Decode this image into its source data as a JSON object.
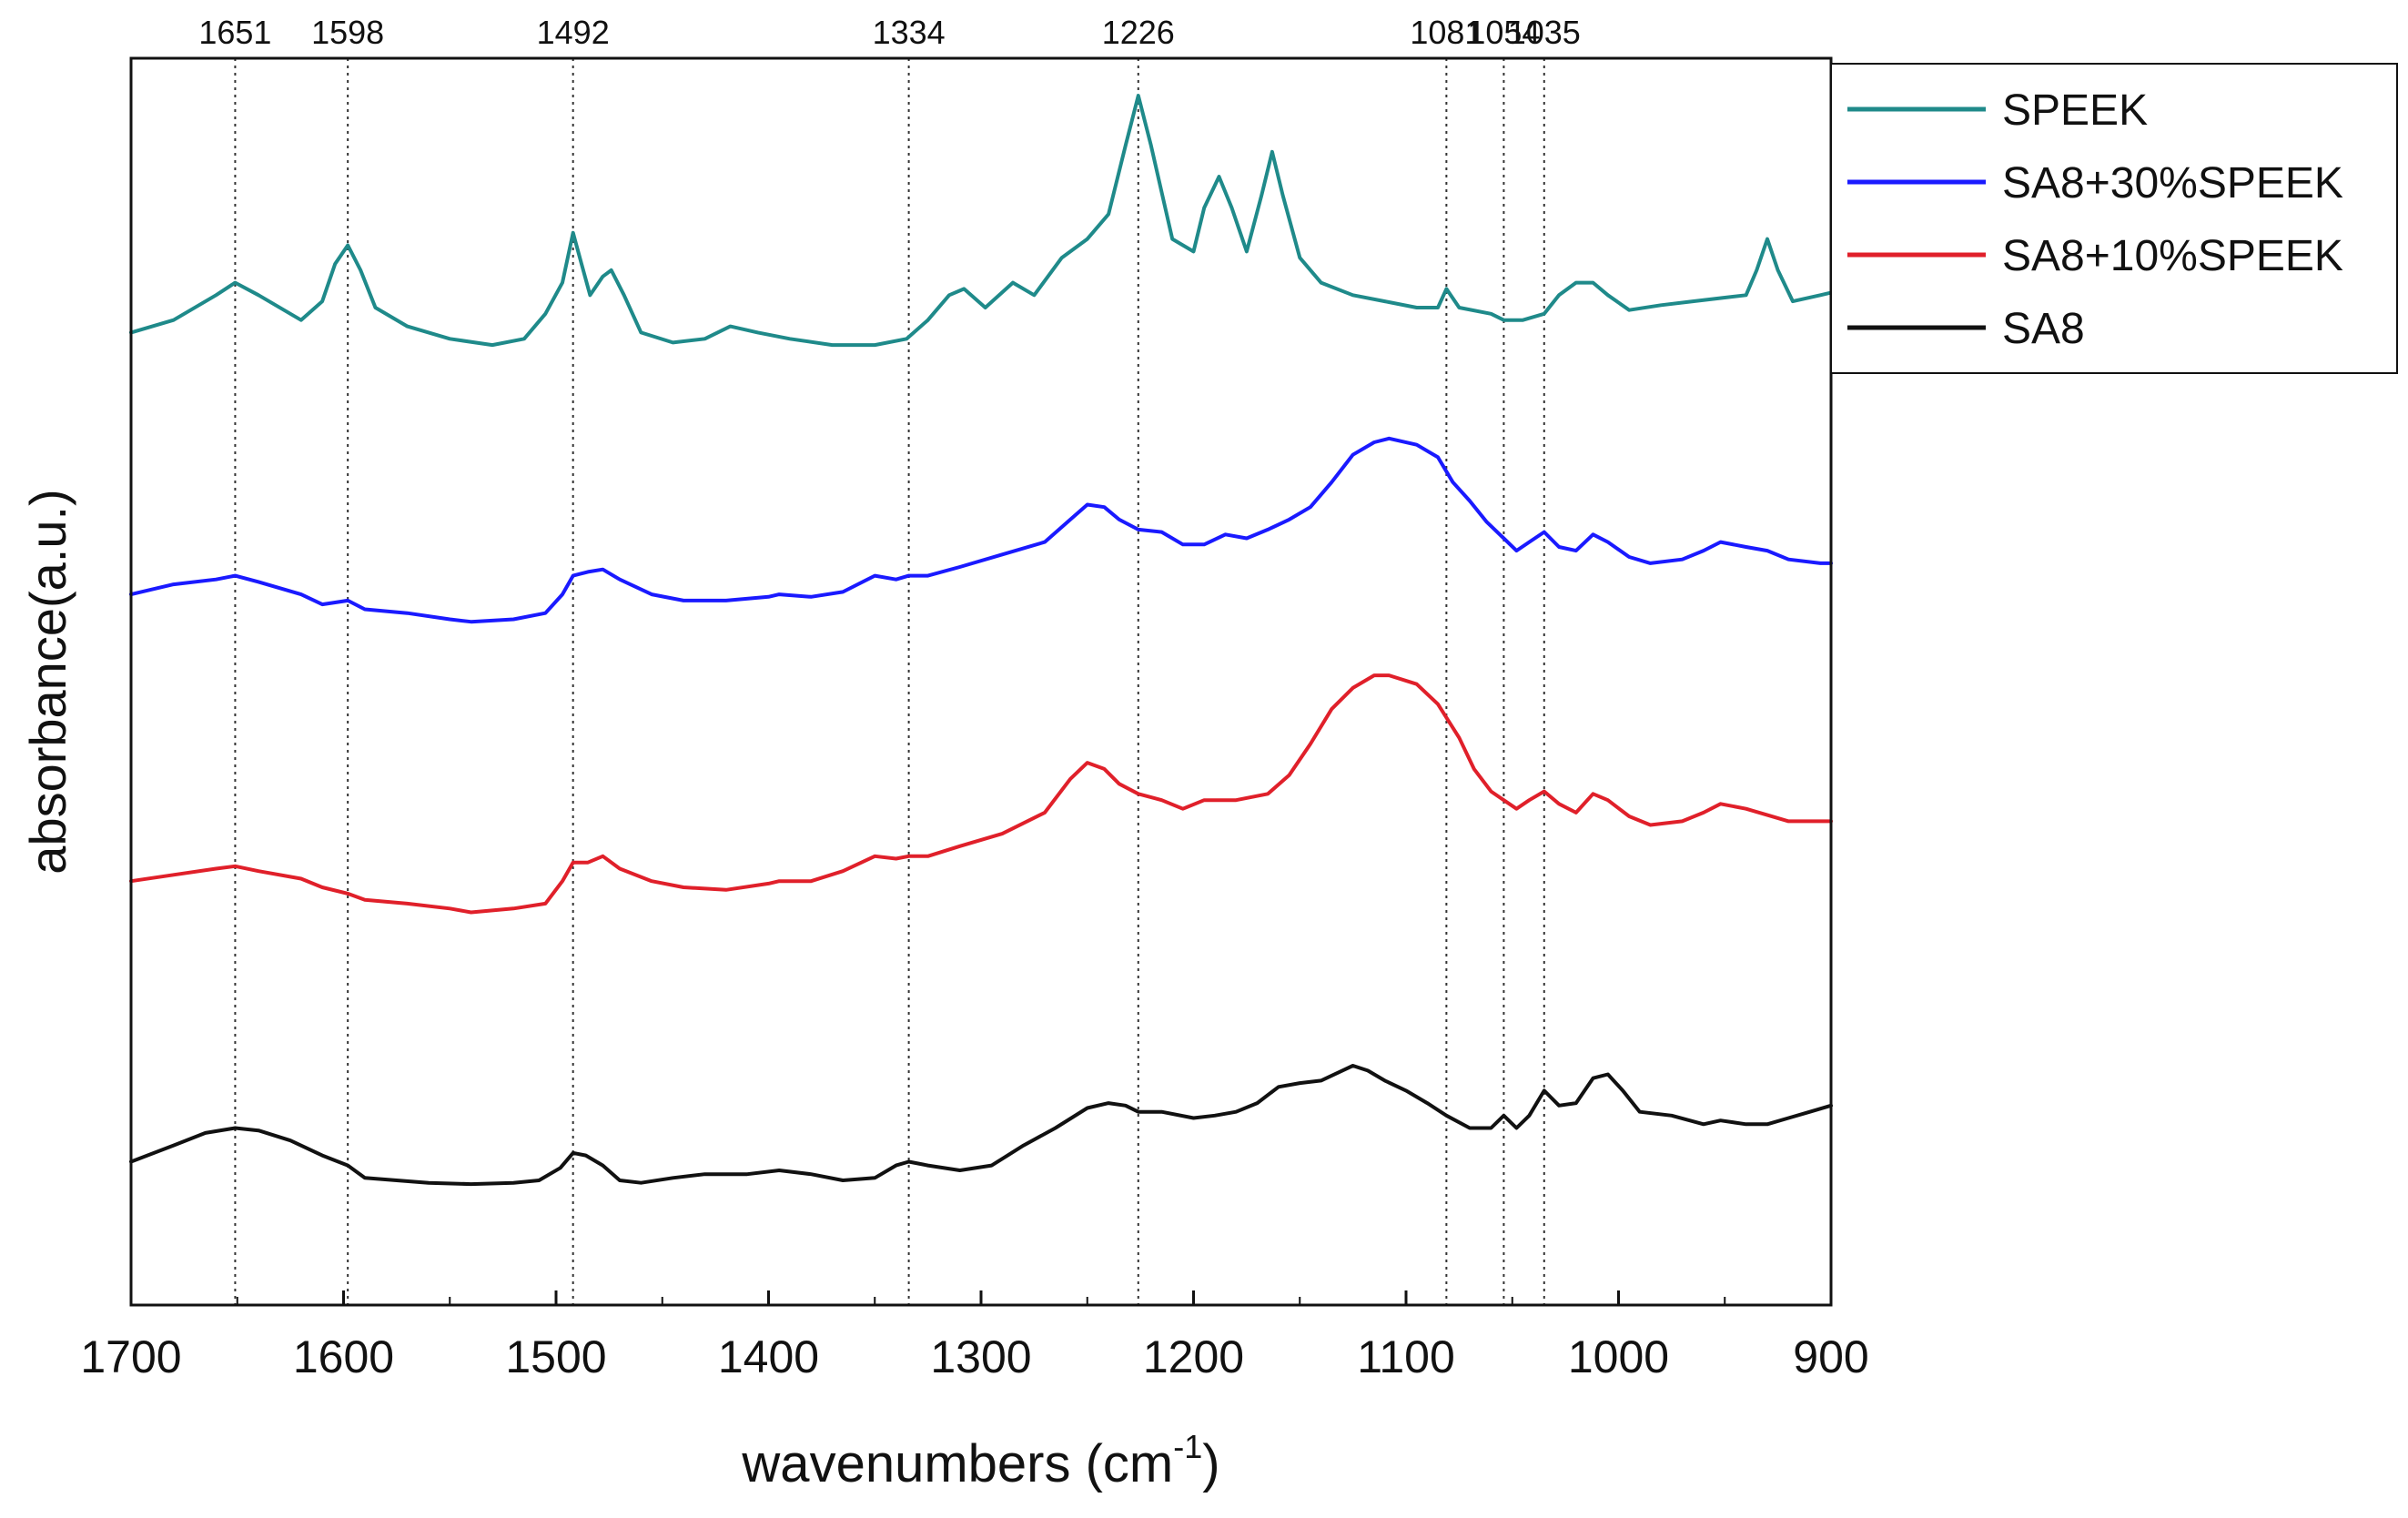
{
  "chart_data": {
    "type": "line",
    "title": "",
    "xlabel_main": "wavenumbers (cm",
    "xlabel_sup": "-1",
    "xlabel_close": ")",
    "ylabel": "absorbance(a.u.)",
    "xlim": [
      1700,
      900
    ],
    "ylim": [
      0,
      10
    ],
    "x_reversed": true,
    "y_ticks_shown": false,
    "x_ticks": [
      1700,
      1600,
      1500,
      1400,
      1300,
      1200,
      1100,
      1000,
      900
    ],
    "x_tick_labels": [
      "1700",
      "1600",
      "1500",
      "1400",
      "1300",
      "1200",
      "1100",
      "1000",
      "900"
    ],
    "reference_lines": [
      {
        "x": 1651,
        "label": "1651"
      },
      {
        "x": 1598,
        "label": "1598"
      },
      {
        "x": 1492,
        "label": "1492"
      },
      {
        "x": 1334,
        "label": "1334"
      },
      {
        "x": 1226,
        "label": "1226"
      },
      {
        "x": 1081,
        "label": "1081"
      },
      {
        "x": 1054,
        "label": "1054"
      },
      {
        "x": 1035,
        "label": "1035"
      }
    ],
    "legend_position": "top-right, outside plot",
    "series": [
      {
        "name": "SPEEK",
        "color": "#1f8a8a",
        "points": [
          [
            1700,
            7.8
          ],
          [
            1680,
            7.9
          ],
          [
            1660,
            8.1
          ],
          [
            1651,
            8.2
          ],
          [
            1640,
            8.1
          ],
          [
            1620,
            7.9
          ],
          [
            1610,
            8.05
          ],
          [
            1604,
            8.35
          ],
          [
            1598,
            8.5
          ],
          [
            1592,
            8.3
          ],
          [
            1585,
            8.0
          ],
          [
            1570,
            7.85
          ],
          [
            1550,
            7.75
          ],
          [
            1530,
            7.7
          ],
          [
            1515,
            7.75
          ],
          [
            1505,
            7.95
          ],
          [
            1497,
            8.2
          ],
          [
            1492,
            8.6
          ],
          [
            1488,
            8.35
          ],
          [
            1484,
            8.1
          ],
          [
            1478,
            8.25
          ],
          [
            1474,
            8.3
          ],
          [
            1468,
            8.1
          ],
          [
            1460,
            7.8
          ],
          [
            1445,
            7.72
          ],
          [
            1430,
            7.75
          ],
          [
            1418,
            7.85
          ],
          [
            1405,
            7.8
          ],
          [
            1390,
            7.75
          ],
          [
            1370,
            7.7
          ],
          [
            1350,
            7.7
          ],
          [
            1335,
            7.75
          ],
          [
            1325,
            7.9
          ],
          [
            1315,
            8.1
          ],
          [
            1308,
            8.15
          ],
          [
            1298,
            8.0
          ],
          [
            1285,
            8.2
          ],
          [
            1275,
            8.1
          ],
          [
            1262,
            8.4
          ],
          [
            1250,
            8.55
          ],
          [
            1240,
            8.75
          ],
          [
            1232,
            9.3
          ],
          [
            1226,
            9.7
          ],
          [
            1220,
            9.3
          ],
          [
            1210,
            8.55
          ],
          [
            1200,
            8.45
          ],
          [
            1195,
            8.8
          ],
          [
            1188,
            9.05
          ],
          [
            1182,
            8.8
          ],
          [
            1175,
            8.45
          ],
          [
            1168,
            8.9
          ],
          [
            1163,
            9.25
          ],
          [
            1158,
            8.9
          ],
          [
            1150,
            8.4
          ],
          [
            1140,
            8.2
          ],
          [
            1125,
            8.1
          ],
          [
            1110,
            8.05
          ],
          [
            1095,
            8.0
          ],
          [
            1085,
            8.0
          ],
          [
            1081,
            8.15
          ],
          [
            1075,
            8.0
          ],
          [
            1060,
            7.95
          ],
          [
            1054,
            7.9
          ],
          [
            1045,
            7.9
          ],
          [
            1035,
            7.95
          ],
          [
            1028,
            8.1
          ],
          [
            1020,
            8.2
          ],
          [
            1012,
            8.2
          ],
          [
            1005,
            8.1
          ],
          [
            995,
            7.98
          ],
          [
            980,
            8.02
          ],
          [
            965,
            8.05
          ],
          [
            950,
            8.08
          ],
          [
            940,
            8.1
          ],
          [
            935,
            8.3
          ],
          [
            930,
            8.55
          ],
          [
            925,
            8.3
          ],
          [
            918,
            8.05
          ],
          [
            905,
            8.1
          ],
          [
            900,
            8.12
          ]
        ]
      },
      {
        "name": "SA8+30%SPEEK",
        "color": "#1a1aff",
        "points": [
          [
            1700,
            5.7
          ],
          [
            1680,
            5.78
          ],
          [
            1660,
            5.82
          ],
          [
            1651,
            5.85
          ],
          [
            1640,
            5.8
          ],
          [
            1620,
            5.7
          ],
          [
            1610,
            5.62
          ],
          [
            1598,
            5.65
          ],
          [
            1590,
            5.58
          ],
          [
            1570,
            5.55
          ],
          [
            1550,
            5.5
          ],
          [
            1540,
            5.48
          ],
          [
            1520,
            5.5
          ],
          [
            1505,
            5.55
          ],
          [
            1497,
            5.7
          ],
          [
            1492,
            5.85
          ],
          [
            1485,
            5.88
          ],
          [
            1478,
            5.9
          ],
          [
            1470,
            5.82
          ],
          [
            1455,
            5.7
          ],
          [
            1440,
            5.65
          ],
          [
            1420,
            5.65
          ],
          [
            1400,
            5.68
          ],
          [
            1395,
            5.7
          ],
          [
            1380,
            5.68
          ],
          [
            1365,
            5.72
          ],
          [
            1350,
            5.85
          ],
          [
            1340,
            5.82
          ],
          [
            1334,
            5.85
          ],
          [
            1325,
            5.85
          ],
          [
            1310,
            5.92
          ],
          [
            1290,
            6.02
          ],
          [
            1270,
            6.12
          ],
          [
            1258,
            6.3
          ],
          [
            1250,
            6.42
          ],
          [
            1242,
            6.4
          ],
          [
            1235,
            6.3
          ],
          [
            1226,
            6.22
          ],
          [
            1215,
            6.2
          ],
          [
            1205,
            6.1
          ],
          [
            1195,
            6.1
          ],
          [
            1185,
            6.18
          ],
          [
            1175,
            6.15
          ],
          [
            1165,
            6.22
          ],
          [
            1155,
            6.3
          ],
          [
            1145,
            6.4
          ],
          [
            1135,
            6.6
          ],
          [
            1125,
            6.82
          ],
          [
            1115,
            6.92
          ],
          [
            1108,
            6.95
          ],
          [
            1095,
            6.9
          ],
          [
            1085,
            6.8
          ],
          [
            1078,
            6.6
          ],
          [
            1070,
            6.45
          ],
          [
            1062,
            6.28
          ],
          [
            1054,
            6.15
          ],
          [
            1048,
            6.05
          ],
          [
            1042,
            6.12
          ],
          [
            1035,
            6.2
          ],
          [
            1028,
            6.08
          ],
          [
            1020,
            6.05
          ],
          [
            1012,
            6.18
          ],
          [
            1005,
            6.12
          ],
          [
            995,
            6.0
          ],
          [
            985,
            5.95
          ],
          [
            970,
            5.98
          ],
          [
            960,
            6.05
          ],
          [
            952,
            6.12
          ],
          [
            940,
            6.08
          ],
          [
            930,
            6.05
          ],
          [
            920,
            5.98
          ],
          [
            905,
            5.95
          ],
          [
            900,
            5.95
          ]
        ]
      },
      {
        "name": "SA8+10%SPEEK",
        "color": "#e0202a",
        "points": [
          [
            1700,
            3.4
          ],
          [
            1680,
            3.45
          ],
          [
            1660,
            3.5
          ],
          [
            1651,
            3.52
          ],
          [
            1640,
            3.48
          ],
          [
            1620,
            3.42
          ],
          [
            1610,
            3.35
          ],
          [
            1598,
            3.3
          ],
          [
            1590,
            3.25
          ],
          [
            1570,
            3.22
          ],
          [
            1550,
            3.18
          ],
          [
            1540,
            3.15
          ],
          [
            1520,
            3.18
          ],
          [
            1505,
            3.22
          ],
          [
            1497,
            3.4
          ],
          [
            1492,
            3.55
          ],
          [
            1485,
            3.55
          ],
          [
            1478,
            3.6
          ],
          [
            1470,
            3.5
          ],
          [
            1455,
            3.4
          ],
          [
            1440,
            3.35
          ],
          [
            1420,
            3.33
          ],
          [
            1400,
            3.38
          ],
          [
            1395,
            3.4
          ],
          [
            1380,
            3.4
          ],
          [
            1365,
            3.48
          ],
          [
            1350,
            3.6
          ],
          [
            1340,
            3.58
          ],
          [
            1334,
            3.6
          ],
          [
            1325,
            3.6
          ],
          [
            1310,
            3.68
          ],
          [
            1290,
            3.78
          ],
          [
            1270,
            3.95
          ],
          [
            1258,
            4.22
          ],
          [
            1250,
            4.35
          ],
          [
            1242,
            4.3
          ],
          [
            1235,
            4.18
          ],
          [
            1226,
            4.1
          ],
          [
            1215,
            4.05
          ],
          [
            1205,
            3.98
          ],
          [
            1195,
            4.05
          ],
          [
            1180,
            4.05
          ],
          [
            1165,
            4.1
          ],
          [
            1155,
            4.25
          ],
          [
            1145,
            4.5
          ],
          [
            1135,
            4.78
          ],
          [
            1125,
            4.95
          ],
          [
            1115,
            5.05
          ],
          [
            1108,
            5.05
          ],
          [
            1095,
            4.98
          ],
          [
            1085,
            4.82
          ],
          [
            1075,
            4.55
          ],
          [
            1068,
            4.3
          ],
          [
            1060,
            4.12
          ],
          [
            1054,
            4.05
          ],
          [
            1048,
            3.98
          ],
          [
            1042,
            4.05
          ],
          [
            1035,
            4.12
          ],
          [
            1028,
            4.02
          ],
          [
            1020,
            3.95
          ],
          [
            1012,
            4.1
          ],
          [
            1005,
            4.05
          ],
          [
            995,
            3.92
          ],
          [
            985,
            3.85
          ],
          [
            970,
            3.88
          ],
          [
            960,
            3.95
          ],
          [
            952,
            4.02
          ],
          [
            940,
            3.98
          ],
          [
            930,
            3.93
          ],
          [
            920,
            3.88
          ],
          [
            905,
            3.88
          ],
          [
            900,
            3.88
          ]
        ]
      },
      {
        "name": "SA8",
        "color": "#111111",
        "points": [
          [
            1700,
            1.15
          ],
          [
            1680,
            1.28
          ],
          [
            1665,
            1.38
          ],
          [
            1651,
            1.42
          ],
          [
            1640,
            1.4
          ],
          [
            1625,
            1.32
          ],
          [
            1610,
            1.2
          ],
          [
            1598,
            1.12
          ],
          [
            1590,
            1.02
          ],
          [
            1575,
            1.0
          ],
          [
            1560,
            0.98
          ],
          [
            1540,
            0.97
          ],
          [
            1520,
            0.98
          ],
          [
            1508,
            1.0
          ],
          [
            1498,
            1.1
          ],
          [
            1492,
            1.22
          ],
          [
            1486,
            1.2
          ],
          [
            1478,
            1.12
          ],
          [
            1470,
            1.0
          ],
          [
            1460,
            0.98
          ],
          [
            1445,
            1.02
          ],
          [
            1430,
            1.05
          ],
          [
            1410,
            1.05
          ],
          [
            1395,
            1.08
          ],
          [
            1380,
            1.05
          ],
          [
            1365,
            1.0
          ],
          [
            1350,
            1.02
          ],
          [
            1340,
            1.12
          ],
          [
            1334,
            1.15
          ],
          [
            1325,
            1.12
          ],
          [
            1310,
            1.08
          ],
          [
            1295,
            1.12
          ],
          [
            1280,
            1.28
          ],
          [
            1265,
            1.42
          ],
          [
            1250,
            1.58
          ],
          [
            1240,
            1.62
          ],
          [
            1232,
            1.6
          ],
          [
            1226,
            1.55
          ],
          [
            1215,
            1.55
          ],
          [
            1200,
            1.5
          ],
          [
            1190,
            1.52
          ],
          [
            1180,
            1.55
          ],
          [
            1170,
            1.62
          ],
          [
            1160,
            1.75
          ],
          [
            1150,
            1.78
          ],
          [
            1140,
            1.8
          ],
          [
            1130,
            1.88
          ],
          [
            1125,
            1.92
          ],
          [
            1118,
            1.88
          ],
          [
            1110,
            1.8
          ],
          [
            1100,
            1.72
          ],
          [
            1090,
            1.62
          ],
          [
            1081,
            1.52
          ],
          [
            1070,
            1.42
          ],
          [
            1060,
            1.42
          ],
          [
            1054,
            1.52
          ],
          [
            1048,
            1.42
          ],
          [
            1042,
            1.52
          ],
          [
            1035,
            1.72
          ],
          [
            1028,
            1.6
          ],
          [
            1020,
            1.62
          ],
          [
            1012,
            1.82
          ],
          [
            1005,
            1.85
          ],
          [
            998,
            1.72
          ],
          [
            990,
            1.55
          ],
          [
            975,
            1.52
          ],
          [
            960,
            1.45
          ],
          [
            952,
            1.48
          ],
          [
            940,
            1.45
          ],
          [
            930,
            1.45
          ],
          [
            920,
            1.5
          ],
          [
            910,
            1.55
          ],
          [
            900,
            1.6
          ]
        ]
      }
    ]
  }
}
